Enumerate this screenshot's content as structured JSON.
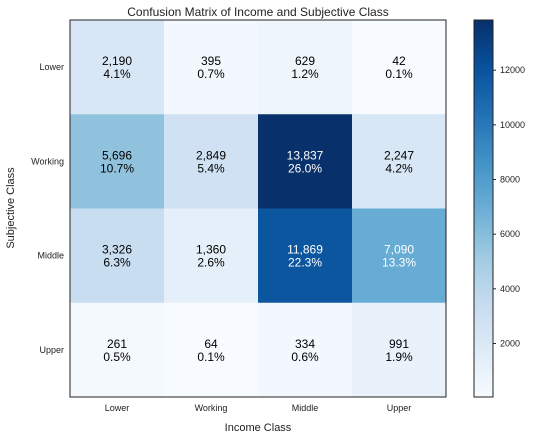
{
  "chart_data": {
    "type": "heatmap",
    "title": "Confusion Matrix of Income and Subjective Class",
    "xlabel": "Income Class",
    "ylabel": "Subjective Class",
    "x_categories": [
      "Lower",
      "Working",
      "Middle",
      "Upper"
    ],
    "y_categories": [
      "Lower",
      "Working",
      "Middle",
      "Upper"
    ],
    "values": [
      [
        2190,
        395,
        629,
        42
      ],
      [
        5696,
        2849,
        13837,
        2247
      ],
      [
        3326,
        1360,
        11869,
        7090
      ],
      [
        261,
        64,
        334,
        991
      ]
    ],
    "cell_labels": [
      [
        [
          "2,190",
          "4.1%"
        ],
        [
          "395",
          "0.7%"
        ],
        [
          "629",
          "1.2%"
        ],
        [
          "42",
          "0.1%"
        ]
      ],
      [
        [
          "5,696",
          "10.7%"
        ],
        [
          "2,849",
          "5.4%"
        ],
        [
          "13,837",
          "26.0%"
        ],
        [
          "2,247",
          "4.2%"
        ]
      ],
      [
        [
          "3,326",
          "6.3%"
        ],
        [
          "1,360",
          "2.6%"
        ],
        [
          "11,869",
          "22.3%"
        ],
        [
          "7,090",
          "13.3%"
        ]
      ],
      [
        [
          "261",
          "0.5%"
        ],
        [
          "64",
          "0.1%"
        ],
        [
          "334",
          "0.6%"
        ],
        [
          "991",
          "1.9%"
        ]
      ]
    ],
    "colormap": "Blues",
    "colorbar_range": [
      42,
      13837
    ],
    "colorbar_ticks": [
      2000,
      4000,
      6000,
      8000,
      10000,
      12000
    ],
    "colorbar_tick_labels": [
      "2000",
      "4000",
      "6000",
      "8000",
      "10000",
      "12000"
    ]
  }
}
